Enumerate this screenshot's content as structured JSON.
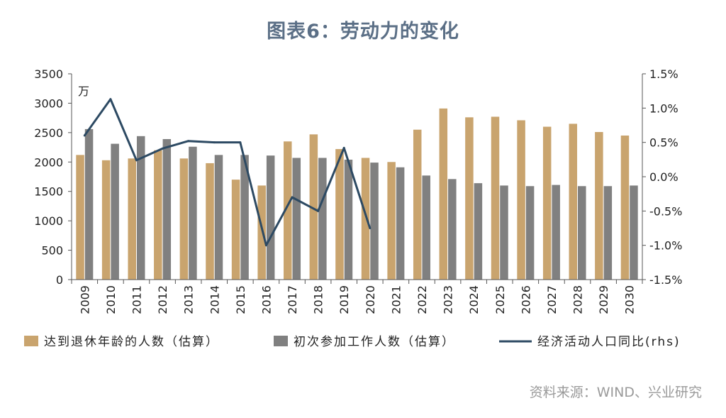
{
  "title": "图表6：劳动力的变化",
  "source": "资料来源：WIND、兴业研究",
  "chart_data": {
    "type": "bar",
    "categories": [
      "2009",
      "2010",
      "2011",
      "2012",
      "2013",
      "2014",
      "2015",
      "2016",
      "2017",
      "2018",
      "2019",
      "2020",
      "2021",
      "2022",
      "2023",
      "2024",
      "2025",
      "2026",
      "2027",
      "2028",
      "2029",
      "2030"
    ],
    "left_axis": {
      "unit_label": "万",
      "min": 0,
      "max": 3500,
      "step": 500
    },
    "right_axis": {
      "min": -1.5,
      "max": 1.5,
      "step": 0.5,
      "format": "percent"
    },
    "series": [
      {
        "name": "达到退休年龄的人数（估算）",
        "type": "bar",
        "axis": "left",
        "color": "#c9a46e",
        "values": [
          2120,
          2030,
          2060,
          2200,
          2060,
          1980,
          1700,
          1600,
          2350,
          2470,
          2220,
          2070,
          2000,
          2550,
          2910,
          2760,
          2770,
          2710,
          2600,
          2650,
          2510,
          2450
        ]
      },
      {
        "name": "初次参加工作人数（估算）",
        "type": "bar",
        "axis": "right_bars",
        "color": "#808080",
        "values": [
          2560,
          2310,
          2440,
          2390,
          2260,
          2120,
          2120,
          2110,
          2070,
          2070,
          2040,
          1990,
          1910,
          1770,
          1710,
          1640,
          1600,
          1590,
          1610,
          1590,
          1590,
          1600
        ]
      },
      {
        "name": "经济活动人口同比(rhs)",
        "type": "line",
        "axis": "right",
        "color": "#2d4a63",
        "x": [
          "2009",
          "2010",
          "2011",
          "2012",
          "2013",
          "2014",
          "2015",
          "2016",
          "2017",
          "2018",
          "2019",
          "2020"
        ],
        "values": [
          0.6,
          1.13,
          0.24,
          0.41,
          0.52,
          0.5,
          0.5,
          -1.0,
          -0.3,
          -0.5,
          0.42,
          -0.75
        ]
      }
    ],
    "legend_position": "bottom",
    "grid": false
  }
}
